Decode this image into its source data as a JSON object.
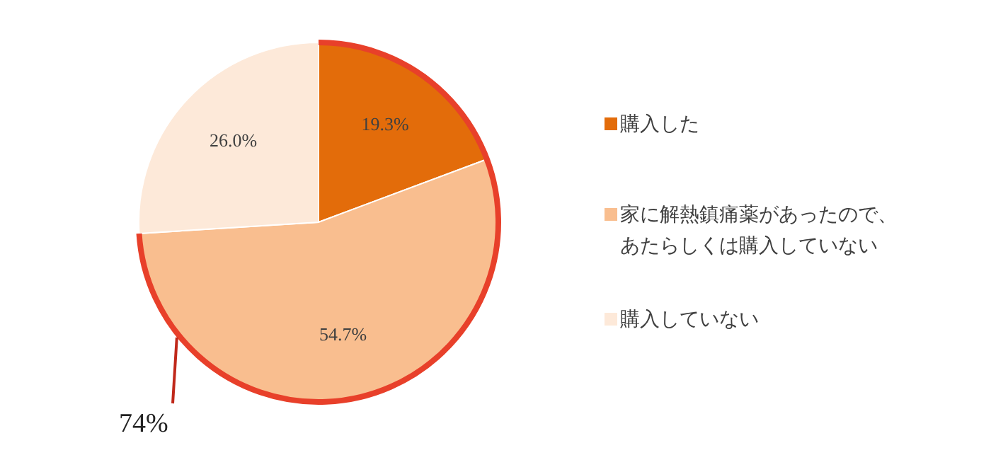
{
  "chart_data": {
    "type": "pie",
    "categories": [
      "購入した",
      "家に解熱鎮痛薬があったので、あたらしくは購入していない",
      "購入していない"
    ],
    "values": [
      19.3,
      54.7,
      26.0
    ],
    "value_labels": [
      "19.3%",
      "54.7%",
      "26.0%"
    ],
    "colors": [
      "#e36c0a",
      "#f9be8f",
      "#fde9d9"
    ],
    "legend": "right",
    "annotations": [
      "74%"
    ]
  }
}
